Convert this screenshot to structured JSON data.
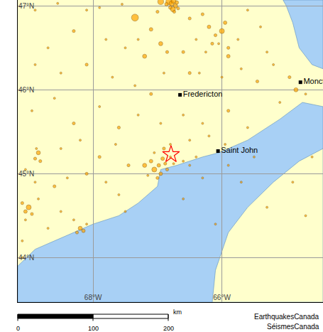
{
  "chart_data": {
    "type": "scatter",
    "xlim": [
      -69.17,
      -64.43
    ],
    "ylim": [
      43.47,
      47.07
    ],
    "xticks": [
      {
        "value": -68,
        "label": "68°W"
      },
      {
        "value": -66,
        "label": "66°W"
      }
    ],
    "yticks": [
      {
        "value": 44,
        "label": "44°N"
      },
      {
        "value": 45,
        "label": "45°N"
      },
      {
        "value": 46,
        "label": "46°N"
      },
      {
        "value": 47,
        "label": "47°N"
      }
    ],
    "grid": true,
    "series": [
      {
        "type": "scatter",
        "marker": "circle",
        "color": "#ffa500",
        "x": [
          -66.82,
          -66.78,
          -66.75,
          -66.72,
          -66.8,
          -66.76,
          -66.7,
          -66.86,
          -66.95,
          -66.74,
          -66.68,
          -67.35,
          -67.0,
          -67.55,
          -67.9,
          -68.1,
          -68.55,
          -68.9,
          -67.3,
          -67.1,
          -66.95,
          -66.85,
          -66.5,
          -66.3,
          -66.2,
          -66.1,
          -66.0,
          -65.9,
          -65.95,
          -66.15,
          -66.25,
          -65.75,
          -65.6,
          -65.4,
          -65.3,
          -65.9,
          -66.05,
          -66.4,
          -66.6,
          -66.5,
          -66.9,
          -67.2,
          -67.5,
          -67.8,
          -68.3,
          -68.7,
          -68.9,
          -68.5,
          -68.1,
          -67.7,
          -67.35,
          -67.1,
          -66.35,
          -66.0,
          -65.7,
          -65.45,
          -65.2,
          -64.85,
          -64.95,
          -64.7,
          -65.1,
          -68.95,
          -68.6,
          -68.3,
          -67.9,
          -67.6,
          -67.3,
          -66.95,
          -66.6,
          -66.3,
          -65.9,
          -65.6,
          -68.85,
          -68.9,
          -68.82,
          -68.88,
          -68.5,
          -68.2,
          -67.9,
          -67.65,
          -67.45,
          -67.2,
          -67.1,
          -67.05,
          -66.98,
          -66.92,
          -66.88,
          -66.85,
          -66.95,
          -67.0,
          -66.8,
          -66.75,
          -66.6,
          -66.5,
          -66.4,
          -67.15,
          -66.9,
          -66.8,
          -67.05,
          -69.0,
          -69.05,
          -68.95,
          -69.1,
          -69.05,
          -68.85,
          -68.6,
          -68.4,
          -68.1,
          -67.8,
          -67.6,
          -68.2,
          -68.15,
          -68.25,
          -68.1,
          -68.3,
          -68.5,
          -68.7,
          -69.1,
          -69.1,
          -68.9,
          -69.05,
          -67.5,
          -66.6,
          -66.3,
          -65.9,
          -65.7,
          -65.5,
          -66.1,
          -65.3,
          -64.9,
          -64.6,
          -64.7,
          -66.5,
          -66.2,
          -65.95
        ],
        "y": [
          47.05,
          47.03,
          47.06,
          47.0,
          46.98,
          46.96,
          47.04,
          47.02,
          47.05,
          46.93,
          46.97,
          46.86,
          46.93,
          47.02,
          46.98,
          46.95,
          47.03,
          46.95,
          46.6,
          46.72,
          46.55,
          46.45,
          46.85,
          46.9,
          46.75,
          46.65,
          46.7,
          46.5,
          46.8,
          46.55,
          46.45,
          46.6,
          46.95,
          46.75,
          46.45,
          46.4,
          46.55,
          46.6,
          46.45,
          46.2,
          46.2,
          46.4,
          46.5,
          46.6,
          46.7,
          46.5,
          46.3,
          46.2,
          46.3,
          46.15,
          46.05,
          45.95,
          46.2,
          46.15,
          46.25,
          46.1,
          46.3,
          46.0,
          46.15,
          45.95,
          45.85,
          45.75,
          45.9,
          45.6,
          45.8,
          45.55,
          45.7,
          45.6,
          45.7,
          45.6,
          45.75,
          45.55,
          45.25,
          45.18,
          45.15,
          45.3,
          45.3,
          45.4,
          45.2,
          45.35,
          45.1,
          45.1,
          45.15,
          45.05,
          45.1,
          45.18,
          45.12,
          45.05,
          45.0,
          44.95,
          45.2,
          45.12,
          45.15,
          45.1,
          45.2,
          44.98,
          45.3,
          45.35,
          45.25,
          44.6,
          44.55,
          44.52,
          44.65,
          44.45,
          44.7,
          44.85,
          44.95,
          45.0,
          44.9,
          44.75,
          44.35,
          44.32,
          44.3,
          44.4,
          44.45,
          44.55,
          44.35,
          44.2,
          44.0,
          44.9,
          45.05,
          44.55,
          44.7,
          44.95,
          45.1,
          44.9,
          45.2,
          44.4,
          44.6,
          44.9,
          45.2,
          44.5,
          45.4,
          45.45,
          45.35
        ],
        "magnitude": [
          3,
          2.5,
          2.5,
          2.2,
          2,
          2.5,
          2,
          2,
          2.8,
          1.8,
          1.8,
          3.2,
          1.8,
          1.5,
          1.5,
          1.5,
          1.5,
          1.5,
          1.5,
          2,
          2.2,
          1.8,
          1.8,
          1.8,
          2,
          1.8,
          2.5,
          1.8,
          2,
          1.8,
          1.5,
          1.5,
          1.5,
          1.5,
          1.5,
          2,
          1.5,
          1.5,
          1.8,
          1.8,
          1.5,
          2.2,
          1.5,
          1.5,
          1.8,
          1.5,
          1.5,
          1.5,
          1.8,
          1.5,
          1.5,
          1.8,
          1.5,
          1.5,
          1.5,
          1.8,
          1.5,
          2.2,
          1.8,
          1.5,
          1.5,
          1.5,
          1.5,
          1.8,
          1.5,
          1.8,
          1.5,
          1.5,
          1.5,
          1.5,
          1.8,
          1.5,
          2.2,
          1.8,
          1.8,
          1.5,
          1.5,
          1.5,
          1.8,
          1.5,
          1.8,
          2.2,
          2,
          2.5,
          2,
          2,
          1.8,
          1.8,
          2,
          1.8,
          1.5,
          1.5,
          1.5,
          1.5,
          1.5,
          1.5,
          1.8,
          1.5,
          1.5,
          2.5,
          2,
          1.8,
          1.8,
          1.5,
          1.5,
          1.8,
          1.5,
          1.8,
          1.5,
          1.5,
          2.2,
          2,
          1.8,
          1.5,
          1.5,
          1.5,
          1.5,
          1.5,
          1.5,
          1.5,
          1.5,
          1.5,
          1.5,
          1.5,
          1.5,
          1.5,
          1.5,
          1.5,
          1.5,
          1.5,
          1.5,
          1.5,
          1.5,
          1.5,
          1.5
        ]
      },
      {
        "type": "scatter",
        "marker": "star-open",
        "color": "#ff0000",
        "x": [
          -66.79
        ],
        "y": [
          45.23
        ]
      },
      {
        "type": "scatter",
        "marker": "square",
        "color": "#000000",
        "x": [
          -66.65,
          -66.06,
          -64.78
        ],
        "y": [
          45.94,
          45.27,
          46.09
        ],
        "labels": [
          "Fredericton",
          "Saint John",
          "Moncton"
        ]
      }
    ],
    "annotations": [
      "EarthquakesCanada",
      "SéismesCanada"
    ],
    "scale_bar": {
      "ticks": [
        0,
        100,
        200
      ],
      "unit": "km"
    }
  },
  "basemap": {
    "land": {
      "color": "#ffffcc",
      "polygons": [
        {
          "lon": [
            -66.15,
            -66.1,
            -65.9,
            -65.6,
            -65.2,
            -64.8,
            -64.43,
            -64.43
          ],
          "lat": [
            43.47,
            43.85,
            44.3,
            44.6,
            44.9,
            45.15,
            45.3,
            43.47
          ]
        }
      ]
    },
    "water": {
      "color": "#a8d0f5",
      "polygons": [
        {
          "lon": [
            -69.17,
            -69.17,
            -68.9,
            -68.6,
            -68.3,
            -68.0,
            -67.6,
            -67.3,
            -67.0,
            -66.95,
            -66.7,
            -66.3,
            -66.05,
            -65.6,
            -65.1,
            -64.75,
            -64.43,
            -64.43
          ],
          "lat": [
            43.47,
            43.9,
            44.1,
            44.2,
            44.3,
            44.4,
            44.5,
            44.65,
            44.85,
            45.05,
            45.1,
            45.2,
            45.25,
            45.4,
            45.65,
            45.85,
            45.8,
            43.47
          ]
        },
        {
          "lon": [
            -65.05,
            -64.43,
            -64.43,
            -64.6,
            -64.8,
            -64.9,
            -65.0
          ],
          "lat": [
            47.07,
            47.07,
            46.25,
            46.3,
            46.5,
            46.8,
            47.0
          ]
        }
      ]
    }
  }
}
